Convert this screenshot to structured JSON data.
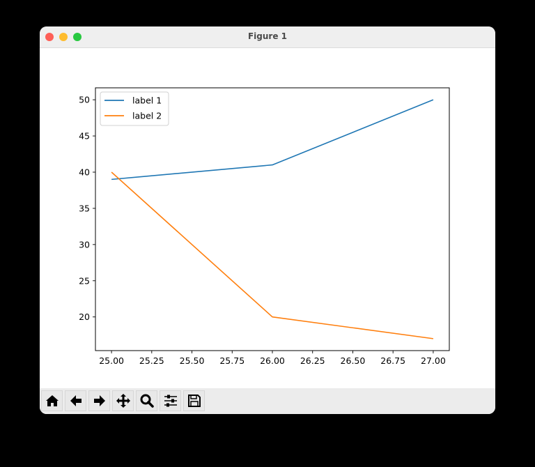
{
  "window": {
    "title": "Figure 1",
    "traffic_lights": {
      "close": "#fe5f57",
      "minimize": "#febc2e",
      "zoom": "#28c840"
    }
  },
  "toolbar": {
    "buttons": [
      {
        "name": "home",
        "icon": "home-icon"
      },
      {
        "name": "back",
        "icon": "arrow-left-icon"
      },
      {
        "name": "forward",
        "icon": "arrow-right-icon"
      },
      {
        "name": "pan",
        "icon": "move-icon"
      },
      {
        "name": "zoom",
        "icon": "magnifier-icon"
      },
      {
        "name": "configure-subplots",
        "icon": "sliders-icon"
      },
      {
        "name": "save",
        "icon": "floppy-disk-icon"
      }
    ]
  },
  "chart_data": {
    "type": "line",
    "title": "",
    "xlabel": "",
    "ylabel": "",
    "x": [
      25,
      26,
      27
    ],
    "series": [
      {
        "name": "label 1",
        "values": [
          39,
          41,
          50
        ],
        "color": "#1f77b4"
      },
      {
        "name": "label 2",
        "values": [
          40,
          20,
          17
        ],
        "color": "#ff7f0e"
      }
    ],
    "xticks": [
      "25.00",
      "25.25",
      "25.50",
      "25.75",
      "26.00",
      "26.25",
      "26.50",
      "26.75",
      "27.00"
    ],
    "yticks": [
      "20",
      "25",
      "30",
      "35",
      "40",
      "45",
      "50"
    ],
    "xlim": [
      24.9,
      27.1
    ],
    "ylim": [
      15.35,
      51.65
    ],
    "grid": false,
    "legend_position": "upper left"
  }
}
